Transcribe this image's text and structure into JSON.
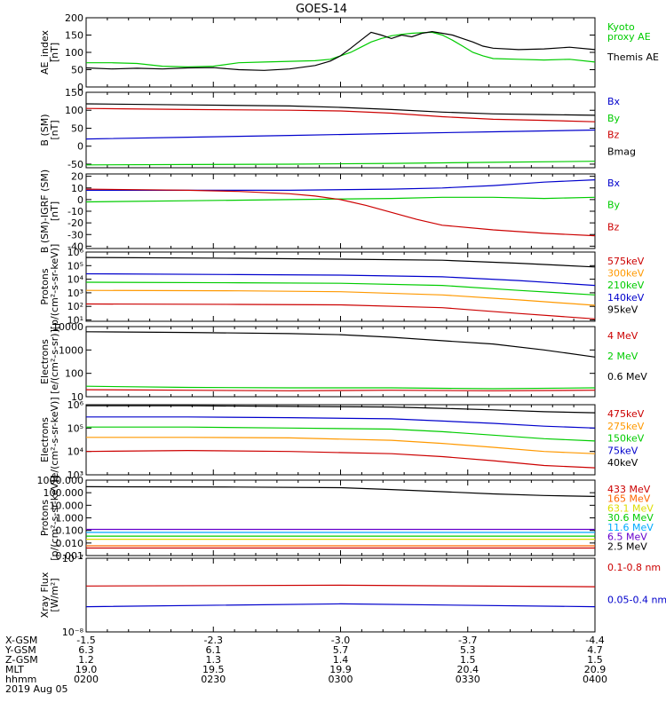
{
  "title": "GOES-14",
  "chart_data": [
    {
      "type": "line",
      "id": "ae",
      "ylabel": [
        "AE_index",
        "[nT]"
      ],
      "yscale": "linear",
      "ylim": [
        0,
        200
      ],
      "yticks": [
        0,
        50,
        100,
        150,
        200
      ],
      "ytick_labels": [
        "0",
        "50",
        "100",
        "150",
        "200"
      ],
      "series": [
        {
          "name": "Kyoto",
          "label_lines": [
            "Kyoto",
            "proxy AE"
          ],
          "color": "#00cc00",
          "x": [
            0,
            0.05,
            0.1,
            0.15,
            0.2,
            0.25,
            0.3,
            0.35,
            0.4,
            0.45,
            0.48,
            0.5,
            0.52,
            0.54,
            0.56,
            0.58,
            0.6,
            0.62,
            0.64,
            0.66,
            0.68,
            0.7,
            0.72,
            0.74,
            0.76,
            0.78,
            0.8,
            0.85,
            0.9,
            0.95,
            1.0
          ],
          "values": [
            70,
            70,
            68,
            60,
            58,
            60,
            70,
            72,
            74,
            76,
            80,
            90,
            100,
            115,
            130,
            140,
            148,
            152,
            155,
            157,
            158,
            150,
            135,
            118,
            100,
            90,
            82,
            80,
            78,
            80,
            72
          ]
        },
        {
          "name": "Themis AE",
          "label_lines": [
            "Themis AE"
          ],
          "color": "#000000",
          "x": [
            0,
            0.05,
            0.1,
            0.15,
            0.2,
            0.25,
            0.3,
            0.35,
            0.4,
            0.45,
            0.48,
            0.5,
            0.52,
            0.54,
            0.56,
            0.58,
            0.6,
            0.62,
            0.64,
            0.66,
            0.68,
            0.7,
            0.72,
            0.74,
            0.76,
            0.78,
            0.8,
            0.85,
            0.9,
            0.95,
            1.0
          ],
          "values": [
            55,
            52,
            54,
            52,
            55,
            56,
            50,
            48,
            52,
            62,
            75,
            90,
            112,
            135,
            158,
            150,
            140,
            150,
            145,
            155,
            160,
            155,
            150,
            140,
            130,
            118,
            112,
            108,
            110,
            115,
            108
          ]
        }
      ]
    },
    {
      "type": "line",
      "id": "bsm",
      "ylabel": [
        "B (SM)",
        "[nT]"
      ],
      "yscale": "linear",
      "ylim": [
        -60,
        150
      ],
      "yticks": [
        -50,
        0,
        50,
        100,
        150
      ],
      "ytick_labels": [
        "-50",
        "0",
        "50",
        "100",
        "150"
      ],
      "series": [
        {
          "name": "Bx",
          "label_lines": [
            "Bx"
          ],
          "color": "#0000cc",
          "x": [
            0,
            0.2,
            0.4,
            0.6,
            0.8,
            1.0
          ],
          "values": [
            20,
            25,
            30,
            35,
            40,
            45
          ]
        },
        {
          "name": "By",
          "label_lines": [
            "By"
          ],
          "color": "#00cc00",
          "x": [
            0,
            0.2,
            0.4,
            0.6,
            0.8,
            1.0
          ],
          "values": [
            -52,
            -51,
            -50,
            -48,
            -45,
            -42
          ]
        },
        {
          "name": "Bz",
          "label_lines": [
            "Bz"
          ],
          "color": "#cc0000",
          "x": [
            0,
            0.2,
            0.4,
            0.5,
            0.6,
            0.7,
            0.8,
            0.9,
            1.0
          ],
          "values": [
            105,
            102,
            100,
            98,
            92,
            82,
            75,
            72,
            68
          ]
        },
        {
          "name": "Bmag",
          "label_lines": [
            "Bmag"
          ],
          "color": "#000000",
          "x": [
            0,
            0.2,
            0.4,
            0.5,
            0.6,
            0.7,
            0.8,
            0.9,
            1.0
          ],
          "values": [
            118,
            115,
            112,
            108,
            102,
            95,
            90,
            88,
            86
          ]
        }
      ]
    },
    {
      "type": "line",
      "id": "bigrf",
      "ylabel": [
        "B (SM)-IGRF (SM)",
        "[nT]"
      ],
      "yscale": "linear",
      "ylim": [
        -42,
        22
      ],
      "yticks": [
        -40,
        -30,
        -20,
        -10,
        0,
        10,
        20
      ],
      "ytick_labels": [
        "-40",
        "-30",
        "-20",
        "-10",
        "0",
        "10",
        "20"
      ],
      "series": [
        {
          "name": "Bx",
          "label_lines": [
            "Bx"
          ],
          "color": "#0000cc",
          "x": [
            0,
            0.2,
            0.4,
            0.6,
            0.7,
            0.8,
            0.9,
            1.0
          ],
          "values": [
            8,
            8,
            8,
            9,
            10,
            12,
            15,
            17
          ]
        },
        {
          "name": "By",
          "label_lines": [
            "By"
          ],
          "color": "#00cc00",
          "x": [
            0,
            0.2,
            0.4,
            0.6,
            0.7,
            0.8,
            0.9,
            1.0
          ],
          "values": [
            -2,
            -1,
            0,
            1,
            2,
            2,
            1,
            2
          ]
        },
        {
          "name": "Bz",
          "label_lines": [
            "Bz"
          ],
          "color": "#cc0000",
          "x": [
            0,
            0.2,
            0.3,
            0.4,
            0.45,
            0.5,
            0.55,
            0.6,
            0.65,
            0.7,
            0.8,
            0.9,
            1.0
          ],
          "values": [
            9,
            8,
            7,
            5,
            3,
            0,
            -5,
            -11,
            -17,
            -22,
            -26,
            -29,
            -31
          ]
        }
      ]
    },
    {
      "type": "line",
      "id": "protons1",
      "ylabel": [
        "Protons",
        "[p/(cm²-s-sr-keV)]"
      ],
      "yscale": "log",
      "ylim": [
        8,
        1000000
      ],
      "yticks": [
        10,
        100,
        1000,
        10000,
        100000,
        1000000
      ],
      "ytick_labels": [
        "10¹",
        "10²",
        "10³",
        "10⁴",
        "10⁵",
        "10⁶"
      ],
      "series": [
        {
          "name": "575keV",
          "label_lines": [
            "575keV"
          ],
          "color": "#cc0000",
          "x": [
            0,
            0.3,
            0.5,
            0.7,
            0.85,
            1.0
          ],
          "values": [
            150,
            140,
            130,
            80,
            30,
            12
          ]
        },
        {
          "name": "300keV",
          "label_lines": [
            "300keV"
          ],
          "color": "#ff9900",
          "x": [
            0,
            0.3,
            0.5,
            0.7,
            0.85,
            1.0
          ],
          "values": [
            1500,
            1400,
            1200,
            700,
            300,
            120
          ]
        },
        {
          "name": "210keV",
          "label_lines": [
            "210keV"
          ],
          "color": "#00cc00",
          "x": [
            0,
            0.3,
            0.5,
            0.7,
            0.85,
            1.0
          ],
          "values": [
            6000,
            5500,
            5000,
            3500,
            1500,
            700
          ]
        },
        {
          "name": "140keV",
          "label_lines": [
            "140keV"
          ],
          "color": "#0000cc",
          "x": [
            0,
            0.3,
            0.5,
            0.7,
            0.85,
            1.0
          ],
          "values": [
            25000,
            22000,
            20000,
            15000,
            8000,
            3500
          ]
        },
        {
          "name": "95keV",
          "label_lines": [
            "95keV"
          ],
          "color": "#000000",
          "x": [
            0,
            0.3,
            0.5,
            0.7,
            0.85,
            1.0
          ],
          "values": [
            400000,
            350000,
            300000,
            250000,
            150000,
            80000
          ]
        }
      ]
    },
    {
      "type": "line",
      "id": "electrons1",
      "ylabel": [
        "Electrons",
        "[e/(cm²-s-sr)]"
      ],
      "yscale": "log",
      "ylim": [
        10,
        10000
      ],
      "yticks": [
        10,
        100,
        1000,
        10000
      ],
      "ytick_labels": [
        "10",
        "100",
        "1000",
        "10000"
      ],
      "series": [
        {
          "name": "4 MeV",
          "label_lines": [
            "4 MeV"
          ],
          "color": "#cc0000",
          "x": [
            0,
            0.2,
            0.4,
            0.6,
            0.8,
            1.0
          ],
          "values": [
            20,
            19,
            18,
            19,
            18,
            19
          ]
        },
        {
          "name": "2 MeV",
          "label_lines": [
            "2 MeV"
          ],
          "color": "#00cc00",
          "x": [
            0,
            0.2,
            0.4,
            0.6,
            0.8,
            1.0
          ],
          "values": [
            28,
            25,
            24,
            24,
            22,
            24
          ]
        },
        {
          "name": "0.6 MeV",
          "label_lines": [
            "0.6 MeV"
          ],
          "color": "#000000",
          "x": [
            0,
            0.2,
            0.4,
            0.5,
            0.6,
            0.7,
            0.8,
            0.9,
            1.0
          ],
          "values": [
            6000,
            5600,
            5000,
            4500,
            3500,
            2500,
            1800,
            1000,
            500
          ]
        }
      ]
    },
    {
      "type": "line",
      "id": "electrons2",
      "ylabel": [
        "Electrons",
        "[e/(cm²-s-sr-keV)]"
      ],
      "yscale": "log",
      "ylim": [
        1000,
        1000000
      ],
      "yticks": [
        1000,
        10000,
        100000,
        1000000
      ],
      "ytick_labels": [
        "10³",
        "10⁴",
        "10⁵",
        "10⁶"
      ],
      "series": [
        {
          "name": "475keV",
          "label_lines": [
            "475keV"
          ],
          "color": "#cc0000",
          "x": [
            0,
            0.2,
            0.4,
            0.6,
            0.7,
            0.8,
            0.9,
            1.0
          ],
          "values": [
            10000,
            11000,
            10000,
            8000,
            6000,
            4000,
            2500,
            2000
          ]
        },
        {
          "name": "275keV",
          "label_lines": [
            "275keV"
          ],
          "color": "#ff9900",
          "x": [
            0,
            0.2,
            0.4,
            0.6,
            0.7,
            0.8,
            0.9,
            1.0
          ],
          "values": [
            40000,
            40000,
            38000,
            30000,
            22000,
            15000,
            10000,
            8000
          ]
        },
        {
          "name": "150keV",
          "label_lines": [
            "150keV"
          ],
          "color": "#00cc00",
          "x": [
            0,
            0.2,
            0.4,
            0.6,
            0.7,
            0.8,
            0.9,
            1.0
          ],
          "values": [
            110000,
            110000,
            100000,
            90000,
            70000,
            50000,
            35000,
            28000
          ]
        },
        {
          "name": "75keV",
          "label_lines": [
            "75keV"
          ],
          "color": "#0000cc",
          "x": [
            0,
            0.2,
            0.4,
            0.6,
            0.7,
            0.8,
            0.9,
            1.0
          ],
          "values": [
            300000,
            300000,
            280000,
            250000,
            200000,
            160000,
            120000,
            100000
          ]
        },
        {
          "name": "40keV",
          "label_lines": [
            "40keV"
          ],
          "color": "#000000",
          "x": [
            0,
            0.2,
            0.4,
            0.6,
            0.7,
            0.8,
            0.9,
            1.0
          ],
          "values": [
            900000,
            900000,
            850000,
            800000,
            700000,
            600000,
            500000,
            450000
          ]
        }
      ]
    },
    {
      "type": "line",
      "id": "protons2",
      "ylabel": [
        "Protons",
        "[p/(cm²-s-sr-keV)]"
      ],
      "yscale": "log",
      "ylim": [
        0.001,
        1000
      ],
      "yticks": [
        0.001,
        0.01,
        0.1,
        1,
        10,
        100,
        1000
      ],
      "ytick_labels": [
        "0.001",
        "0.010",
        "0.100",
        "1.000",
        "10.000",
        "100.000",
        "1000.000"
      ],
      "series": [
        {
          "name": "433 MeV",
          "label_lines": [
            "433 MeV"
          ],
          "color": "#cc0000",
          "x": [
            0,
            0.5,
            1.0
          ],
          "values": [
            0.004,
            0.004,
            0.004
          ]
        },
        {
          "name": "165 MeV",
          "label_lines": [
            "165 MeV"
          ],
          "color": "#ff6600",
          "x": [
            0,
            0.5,
            1.0
          ],
          "values": [
            0.006,
            0.006,
            0.006
          ]
        },
        {
          "name": "63.1 MeV",
          "label_lines": [
            "63.1 MeV"
          ],
          "color": "#dddd00",
          "x": [
            0,
            0.5,
            1.0
          ],
          "values": [
            0.02,
            0.02,
            0.02
          ]
        },
        {
          "name": "30.6 MeV",
          "label_lines": [
            "30.6 MeV"
          ],
          "color": "#00cc00",
          "x": [
            0,
            0.5,
            1.0
          ],
          "values": [
            0.035,
            0.035,
            0.035
          ]
        },
        {
          "name": "11.6 MeV",
          "label_lines": [
            "11.6 MeV"
          ],
          "color": "#00aaff",
          "x": [
            0,
            0.5,
            1.0
          ],
          "values": [
            0.07,
            0.07,
            0.07
          ]
        },
        {
          "name": "6.5 MeV",
          "label_lines": [
            "6.5 MeV"
          ],
          "color": "#6600cc",
          "x": [
            0,
            0.5,
            1.0
          ],
          "values": [
            0.12,
            0.12,
            0.12
          ]
        },
        {
          "name": "2.5 MeV",
          "label_lines": [
            "2.5 MeV"
          ],
          "color": "#000000",
          "x": [
            0,
            0.3,
            0.5,
            0.6,
            0.7,
            0.8,
            0.9,
            1.0
          ],
          "values": [
            300,
            280,
            250,
            180,
            120,
            80,
            60,
            50
          ]
        }
      ]
    },
    {
      "type": "line",
      "id": "xray",
      "ylabel": [
        "Xray Flux",
        "[W/m²]"
      ],
      "yscale": "log",
      "ylim": [
        1e-08,
        1e-07
      ],
      "yticks": [
        1e-08,
        1e-07
      ],
      "ytick_labels": [
        "10⁻⁸",
        "10⁻⁷"
      ],
      "series": [
        {
          "name": "0.1-0.8 nm",
          "label_lines": [
            "0.1-0.8 nm"
          ],
          "color": "#cc0000",
          "x": [
            0,
            0.5,
            1.0
          ],
          "values": [
            4.2e-08,
            4.3e-08,
            4.1e-08
          ]
        },
        {
          "name": "0.05-0.4 nm",
          "label_lines": [
            "0.05-0.4 nm"
          ],
          "color": "#0000cc",
          "x": [
            0,
            0.5,
            1.0
          ],
          "values": [
            2.2e-08,
            2.4e-08,
            2.2e-08
          ]
        }
      ]
    }
  ],
  "ephemeris": {
    "row_labels": [
      "X-GSM",
      "Y-GSM",
      "Z-GSM",
      "MLT",
      "hhmm"
    ],
    "columns": [
      [
        "-1.5",
        "6.3",
        "1.2",
        "19.0",
        "0200"
      ],
      [
        "-2.3",
        "6.1",
        "1.3",
        "19.5",
        "0230"
      ],
      [
        "-3.0",
        "5.7",
        "1.4",
        "19.9",
        "0300"
      ],
      [
        "-3.7",
        "5.3",
        "1.5",
        "20.4",
        "0330"
      ],
      [
        "-4.4",
        "4.7",
        "1.5",
        "20.9",
        "0400"
      ]
    ],
    "date": "2019 Aug 05"
  }
}
